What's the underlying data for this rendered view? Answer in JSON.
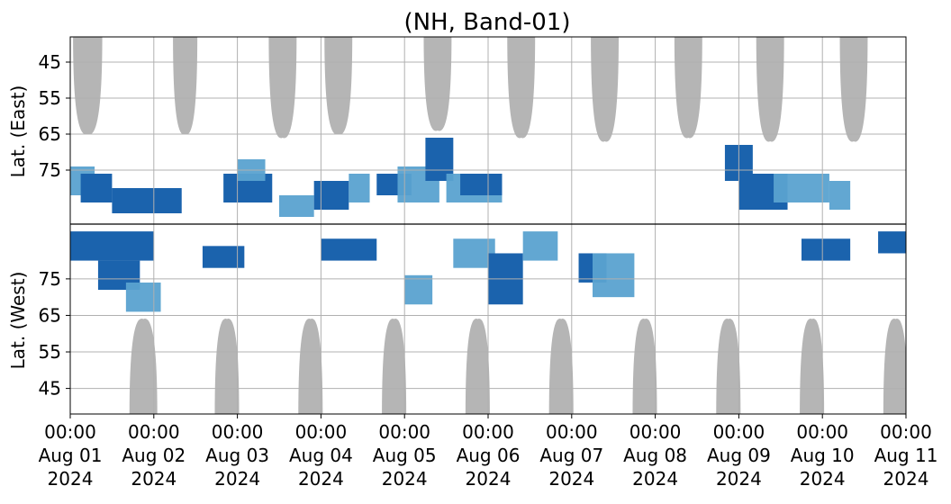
{
  "chart_data": {
    "type": "heatmap",
    "title": "(NH, Band-01)",
    "ylabel_top": "Lat. (East)",
    "ylabel_bottom": "Lat. (West)",
    "ytick_labels_top": [
      "45",
      "55",
      "65",
      "75"
    ],
    "ytick_labels_bottom": [
      "75",
      "65",
      "55",
      "45"
    ],
    "ytick_values": [
      45,
      55,
      65,
      75
    ],
    "xtick_labels": [
      [
        "00:00",
        "Aug 01",
        "2024"
      ],
      [
        "00:00",
        "Aug 02",
        "2024"
      ],
      [
        "00:00",
        "Aug 03",
        "2024"
      ],
      [
        "00:00",
        "Aug 04",
        "2024"
      ],
      [
        "00:00",
        "Aug 05",
        "2024"
      ],
      [
        "00:00",
        "Aug 06",
        "2024"
      ],
      [
        "00:00",
        "Aug 07",
        "2024"
      ],
      [
        "00:00",
        "Aug 08",
        "2024"
      ],
      [
        "00:00",
        "Aug 09",
        "2024"
      ],
      [
        "00:00",
        "Aug 10",
        "2024"
      ],
      [
        "00:00",
        "Aug 11",
        "2024"
      ]
    ],
    "xlim": [
      "2024-08-01T00:00",
      "2024-08-11T00:00"
    ],
    "ylim_latitude": [
      38,
      90
    ],
    "grid": true,
    "colors": {
      "no_coverage": "#b5b5b5",
      "weak": "#5aa2d0",
      "strong": "#1b63ad",
      "grid": "#b0b0b0",
      "divider": "#000000"
    },
    "no_coverage_east": [
      {
        "center": "2024-08-01T05:00",
        "halfwidth_hours": 4.2,
        "min_lat": 65
      },
      {
        "center": "2024-08-02T09:00",
        "halfwidth_hours": 3.5,
        "min_lat": 65
      },
      {
        "center": "2024-08-03T13:00",
        "halfwidth_hours": 4.0,
        "min_lat": 66
      },
      {
        "center": "2024-08-04T05:00",
        "halfwidth_hours": 4.0,
        "min_lat": 65
      },
      {
        "center": "2024-08-05T09:30",
        "halfwidth_hours": 4.0,
        "min_lat": 64
      },
      {
        "center": "2024-08-06T09:30",
        "halfwidth_hours": 4.0,
        "min_lat": 66
      },
      {
        "center": "2024-08-07T09:30",
        "halfwidth_hours": 4.0,
        "min_lat": 67
      },
      {
        "center": "2024-08-08T09:30",
        "halfwidth_hours": 4.0,
        "min_lat": 66
      },
      {
        "center": "2024-08-09T09:00",
        "halfwidth_hours": 4.0,
        "min_lat": 67
      },
      {
        "center": "2024-08-10T09:00",
        "halfwidth_hours": 4.0,
        "min_lat": 67
      }
    ],
    "no_coverage_west": [
      {
        "center": "2024-08-01T21:00",
        "halfwidth_hours": 4.0,
        "min_lat": 64
      },
      {
        "center": "2024-08-02T21:00",
        "halfwidth_hours": 3.5,
        "min_lat": 64
      },
      {
        "center": "2024-08-03T21:00",
        "halfwidth_hours": 3.5,
        "min_lat": 64
      },
      {
        "center": "2024-08-04T21:00",
        "halfwidth_hours": 3.5,
        "min_lat": 64
      },
      {
        "center": "2024-08-05T21:00",
        "halfwidth_hours": 3.5,
        "min_lat": 64
      },
      {
        "center": "2024-08-06T21:00",
        "halfwidth_hours": 3.5,
        "min_lat": 64
      },
      {
        "center": "2024-08-07T21:00",
        "halfwidth_hours": 3.5,
        "min_lat": 64
      },
      {
        "center": "2024-08-08T21:00",
        "halfwidth_hours": 3.5,
        "min_lat": 64
      },
      {
        "center": "2024-08-09T21:00",
        "halfwidth_hours": 3.5,
        "min_lat": 64
      },
      {
        "center": "2024-08-10T21:00",
        "halfwidth_hours": 3.5,
        "min_lat": 64
      }
    ],
    "detection_patches": [
      {
        "start": "2024-08-01T00:00",
        "end": "2024-08-01T07:00",
        "hemisphere": "east",
        "lat_low": 74,
        "lat_high": 82,
        "level": "weak"
      },
      {
        "start": "2024-08-01T03:00",
        "end": "2024-08-01T12:00",
        "hemisphere": "east",
        "lat_low": 76,
        "lat_high": 84,
        "level": "strong"
      },
      {
        "start": "2024-08-01T00:00",
        "end": "2024-08-02T00:00",
        "hemisphere": "west",
        "lat_low": 80,
        "lat_high": 88,
        "level": "strong"
      },
      {
        "start": "2024-08-01T08:00",
        "end": "2024-08-01T20:00",
        "hemisphere": "west",
        "lat_low": 72,
        "lat_high": 80,
        "level": "strong"
      },
      {
        "start": "2024-08-01T16:00",
        "end": "2024-08-02T02:00",
        "hemisphere": "west",
        "lat_low": 66,
        "lat_high": 74,
        "level": "weak"
      },
      {
        "start": "2024-08-01T12:00",
        "end": "2024-08-02T08:00",
        "hemisphere": "east",
        "lat_low": 80,
        "lat_high": 87,
        "level": "strong"
      },
      {
        "start": "2024-08-02T14:00",
        "end": "2024-08-03T02:00",
        "hemisphere": "west",
        "lat_low": 78,
        "lat_high": 84,
        "level": "strong"
      },
      {
        "start": "2024-08-02T20:00",
        "end": "2024-08-03T10:00",
        "hemisphere": "east",
        "lat_low": 76,
        "lat_high": 84,
        "level": "strong"
      },
      {
        "start": "2024-08-03T00:00",
        "end": "2024-08-03T08:00",
        "hemisphere": "east",
        "lat_low": 72,
        "lat_high": 78,
        "level": "weak"
      },
      {
        "start": "2024-08-03T12:00",
        "end": "2024-08-03T22:00",
        "hemisphere": "east",
        "lat_low": 82,
        "lat_high": 88,
        "level": "weak"
      },
      {
        "start": "2024-08-03T22:00",
        "end": "2024-08-04T08:00",
        "hemisphere": "east",
        "lat_low": 78,
        "lat_high": 86,
        "level": "strong"
      },
      {
        "start": "2024-08-04T08:00",
        "end": "2024-08-04T14:00",
        "hemisphere": "east",
        "lat_low": 76,
        "lat_high": 84,
        "level": "weak"
      },
      {
        "start": "2024-08-04T00:00",
        "end": "2024-08-04T16:00",
        "hemisphere": "west",
        "lat_low": 80,
        "lat_high": 86,
        "level": "strong"
      },
      {
        "start": "2024-08-04T16:00",
        "end": "2024-08-05T02:00",
        "hemisphere": "east",
        "lat_low": 76,
        "lat_high": 82,
        "level": "strong"
      },
      {
        "start": "2024-08-04T22:00",
        "end": "2024-08-05T10:00",
        "hemisphere": "east",
        "lat_low": 74,
        "lat_high": 84,
        "level": "weak"
      },
      {
        "start": "2024-08-05T00:00",
        "end": "2024-08-05T08:00",
        "hemisphere": "west",
        "lat_low": 68,
        "lat_high": 76,
        "level": "weak"
      },
      {
        "start": "2024-08-05T06:00",
        "end": "2024-08-05T14:00",
        "hemisphere": "east",
        "lat_low": 66,
        "lat_high": 78,
        "level": "strong"
      },
      {
        "start": "2024-08-05T12:00",
        "end": "2024-08-06T04:00",
        "hemisphere": "east",
        "lat_low": 76,
        "lat_high": 84,
        "level": "weak"
      },
      {
        "start": "2024-08-05T14:00",
        "end": "2024-08-06T02:00",
        "hemisphere": "west",
        "lat_low": 78,
        "lat_high": 86,
        "level": "weak"
      },
      {
        "start": "2024-08-05T16:00",
        "end": "2024-08-06T04:00",
        "hemisphere": "east",
        "lat_low": 76,
        "lat_high": 82,
        "level": "strong"
      },
      {
        "start": "2024-08-06T00:00",
        "end": "2024-08-06T10:00",
        "hemisphere": "west",
        "lat_low": 68,
        "lat_high": 82,
        "level": "strong"
      },
      {
        "start": "2024-08-06T10:00",
        "end": "2024-08-06T20:00",
        "hemisphere": "west",
        "lat_low": 80,
        "lat_high": 88,
        "level": "weak"
      },
      {
        "start": "2024-08-07T02:00",
        "end": "2024-08-07T10:00",
        "hemisphere": "west",
        "lat_low": 74,
        "lat_high": 82,
        "level": "strong"
      },
      {
        "start": "2024-08-07T06:00",
        "end": "2024-08-07T18:00",
        "hemisphere": "west",
        "lat_low": 70,
        "lat_high": 82,
        "level": "weak"
      },
      {
        "start": "2024-08-08T20:00",
        "end": "2024-08-09T04:00",
        "hemisphere": "east",
        "lat_low": 68,
        "lat_high": 78,
        "level": "strong"
      },
      {
        "start": "2024-08-09T00:00",
        "end": "2024-08-09T14:00",
        "hemisphere": "east",
        "lat_low": 76,
        "lat_high": 86,
        "level": "strong"
      },
      {
        "start": "2024-08-09T10:00",
        "end": "2024-08-10T02:00",
        "hemisphere": "east",
        "lat_low": 76,
        "lat_high": 84,
        "level": "weak"
      },
      {
        "start": "2024-08-09T18:00",
        "end": "2024-08-10T08:00",
        "hemisphere": "west",
        "lat_low": 80,
        "lat_high": 86,
        "level": "strong"
      },
      {
        "start": "2024-08-10T02:00",
        "end": "2024-08-10T08:00",
        "hemisphere": "east",
        "lat_low": 78,
        "lat_high": 86,
        "level": "weak"
      },
      {
        "start": "2024-08-10T16:00",
        "end": "2024-08-10T24:00",
        "hemisphere": "west",
        "lat_low": 82,
        "lat_high": 88,
        "level": "strong"
      }
    ]
  }
}
